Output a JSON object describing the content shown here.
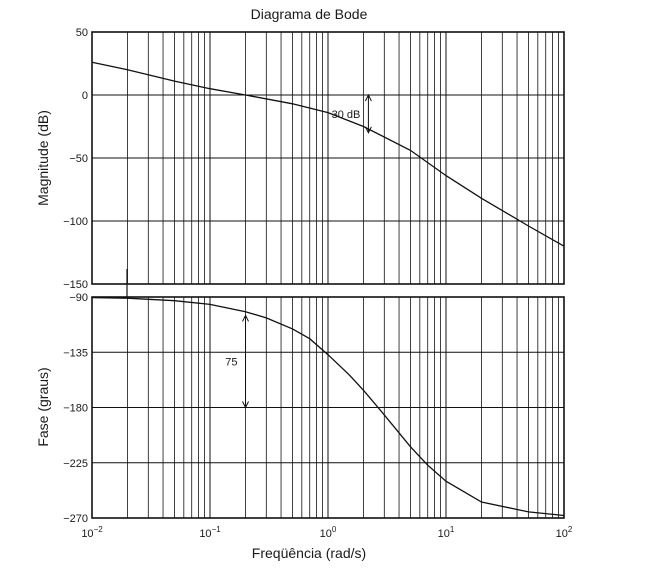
{
  "chart_data": [
    {
      "type": "line",
      "title": "Diagrama de Bode",
      "xlabel": "Freqüência (rad/s)",
      "ylabel": "Magnitude (dB)",
      "xscale": "log",
      "xlim": [
        0.01,
        100
      ],
      "ylim": [
        -150,
        50
      ],
      "yticks": [
        50,
        0,
        -50,
        -100,
        -150
      ],
      "ytick_labels": [
        "50",
        "0",
        "−50",
        "−100",
        "−150"
      ],
      "grid": true,
      "series": [
        {
          "name": "Magnitude",
          "x": [
            0.01,
            0.02,
            0.05,
            0.1,
            0.2,
            0.5,
            1,
            2,
            5,
            10,
            20,
            50,
            100
          ],
          "y": [
            26,
            20,
            11,
            5,
            0,
            -7,
            -14,
            -25,
            -44,
            -64,
            -82,
            -104,
            -120
          ]
        }
      ],
      "annotations": [
        {
          "text": "30 dB",
          "x": 2.2,
          "y_from": 0,
          "y_to": -30
        }
      ]
    },
    {
      "type": "line",
      "xlabel": "Freqüência (rad/s)",
      "ylabel": "Fase (graus)",
      "xscale": "log",
      "xlim": [
        0.01,
        100
      ],
      "ylim": [
        -270,
        -90
      ],
      "yticks": [
        -90,
        -135,
        -180,
        -225,
        -270
      ],
      "ytick_labels": [
        "−90",
        "−135",
        "−180",
        "−225",
        "−270"
      ],
      "xticks": [
        0.01,
        0.1,
        1,
        10,
        100
      ],
      "xtick_bases": [
        "10",
        "10",
        "10",
        "10",
        "10"
      ],
      "xtick_exps": [
        "−2",
        "−1",
        "0",
        "1",
        "2"
      ],
      "grid": true,
      "series": [
        {
          "name": "Fase",
          "x": [
            0.01,
            0.02,
            0.05,
            0.1,
            0.2,
            0.3,
            0.5,
            0.7,
            1,
            1.5,
            2,
            3,
            5,
            7,
            10,
            20,
            50,
            100
          ],
          "y": [
            -90.5,
            -91,
            -93,
            -96,
            -102,
            -107,
            -116,
            -124,
            -137,
            -153,
            -166,
            -186,
            -212,
            -227,
            -240,
            -257,
            -265,
            -268
          ]
        }
      ],
      "annotations": [
        {
          "text": "75",
          "x": 0.2,
          "y_from": -105,
          "y_to": -180
        }
      ]
    }
  ]
}
